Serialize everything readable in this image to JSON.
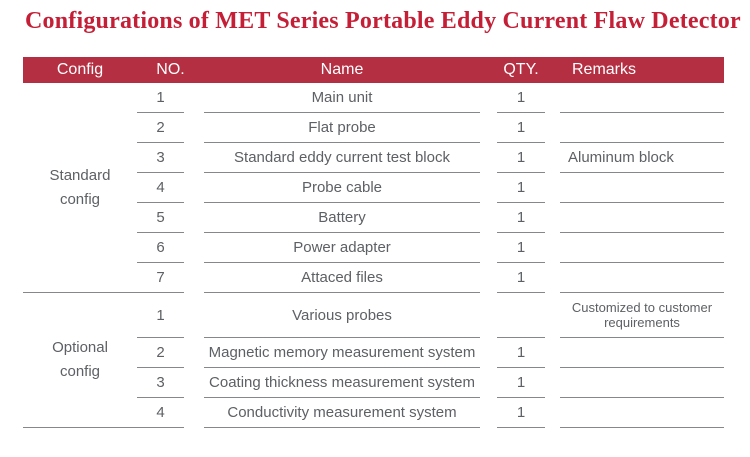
{
  "title": "Configurations of MET Series Portable Eddy Current Flaw Detector",
  "colors": {
    "title_red": "#c41f36",
    "header_bar_red": "#b52f42",
    "rule_gray": "#85878a",
    "text_gray": "#5d6064"
  },
  "table": {
    "headers": {
      "config": "Config",
      "no": "NO.",
      "name": "Name",
      "qty": "QTY.",
      "remarks": "Remarks"
    },
    "sections": [
      {
        "config_label": "Standard\nconfig",
        "rows": [
          {
            "no": "1",
            "name": "Main unit",
            "qty": "1",
            "remarks": ""
          },
          {
            "no": "2",
            "name": "Flat probe",
            "qty": "1",
            "remarks": ""
          },
          {
            "no": "3",
            "name": "Standard eddy current test block",
            "qty": "1",
            "remarks": "Aluminum block"
          },
          {
            "no": "4",
            "name": "Probe cable",
            "qty": "1",
            "remarks": ""
          },
          {
            "no": "5",
            "name": "Battery",
            "qty": "1",
            "remarks": ""
          },
          {
            "no": "6",
            "name": "Power adapter",
            "qty": "1",
            "remarks": ""
          },
          {
            "no": "7",
            "name": "Attaced files",
            "qty": "1",
            "remarks": ""
          }
        ]
      },
      {
        "config_label": "Optional\nconfig",
        "rows": [
          {
            "no": "1",
            "name": "Various probes",
            "qty": "",
            "remarks": "Customized to customer requirements"
          },
          {
            "no": "2",
            "name": "Magnetic memory measurement system",
            "qty": "1",
            "remarks": ""
          },
          {
            "no": "3",
            "name": "Coating thickness measurement system",
            "qty": "1",
            "remarks": ""
          },
          {
            "no": "4",
            "name": "Conductivity measurement system",
            "qty": "1",
            "remarks": ""
          }
        ]
      }
    ]
  }
}
